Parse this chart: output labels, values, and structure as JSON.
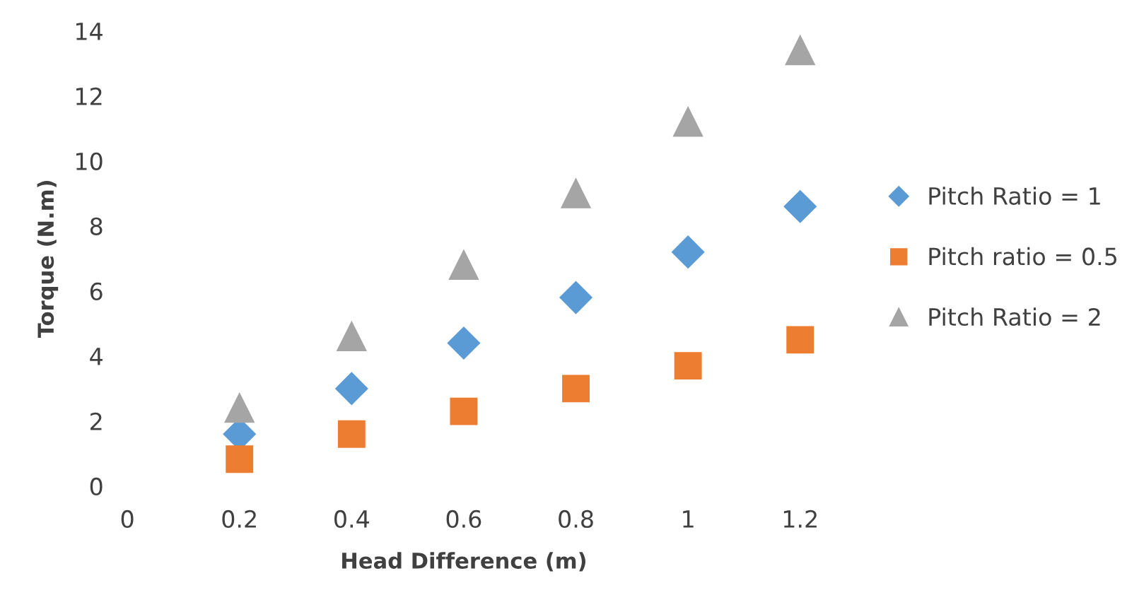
{
  "chart_data": {
    "type": "scatter",
    "xlabel": "Head Difference (m)",
    "ylabel": "Torque (N.m)",
    "x": [
      0.2,
      0.4,
      0.6,
      0.8,
      1,
      1.2
    ],
    "series": [
      {
        "name": "Pitch Ratio = 1",
        "color": "#5b9bd5",
        "marker": "diamond",
        "values": [
          1.6,
          3.0,
          4.4,
          5.8,
          7.2,
          8.6
        ]
      },
      {
        "name": "Pitch ratio = 0.5",
        "color": "#ed7d31",
        "marker": "square",
        "values": [
          0.83,
          1.6,
          2.3,
          3.0,
          3.7,
          4.5
        ]
      },
      {
        "name": "Pitch Ratio = 2",
        "color": "#a5a5a5",
        "marker": "triangle",
        "values": [
          2.4,
          4.6,
          6.8,
          9.0,
          11.2,
          13.4
        ]
      }
    ],
    "xlim": [
      0,
      1.2
    ],
    "xticks": [
      0,
      0.2,
      0.4,
      0.6,
      0.8,
      1,
      1.2
    ],
    "ylim": [
      0,
      14
    ],
    "yticks": [
      0,
      2,
      4,
      6,
      8,
      10,
      12,
      14
    ],
    "grid": false,
    "legend": "right"
  }
}
